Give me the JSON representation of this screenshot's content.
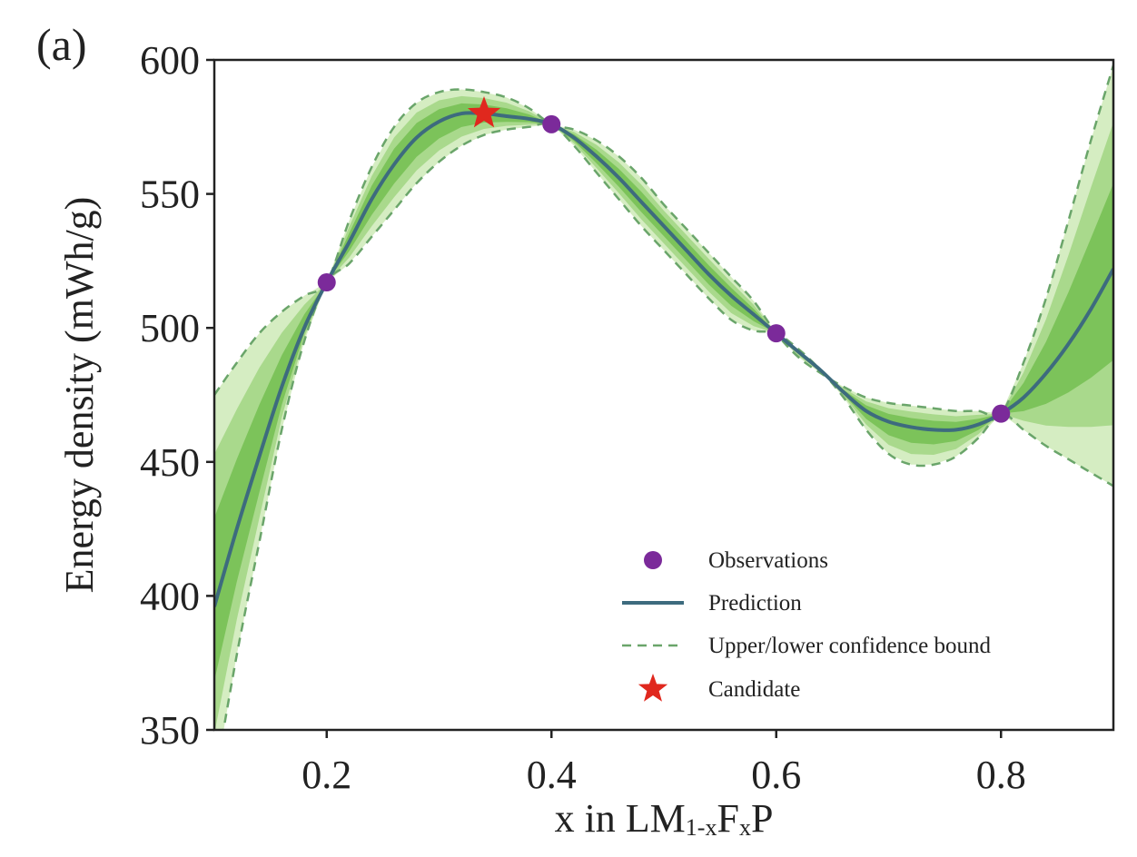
{
  "panel_label": "(a)",
  "chart_data": {
    "type": "line",
    "xlabel": {
      "main": "x in LM",
      "sub1": "1-x",
      "mid": "F",
      "sub2": "x",
      "tail": "P"
    },
    "ylabel": "Energy density (mWh/g)",
    "xlim": [
      0.1,
      0.9
    ],
    "ylim": [
      350,
      600
    ],
    "x_ticks": [
      0.2,
      0.4,
      0.6,
      0.8
    ],
    "x_tick_labels": [
      "0.2",
      "0.4",
      "0.6",
      "0.8"
    ],
    "y_ticks": [
      350,
      400,
      450,
      500,
      550,
      600
    ],
    "y_tick_labels": [
      "350",
      "400",
      "450",
      "500",
      "550",
      "600"
    ],
    "grid": false,
    "legend_position": "bottom-right",
    "observations": {
      "name": "Observations",
      "x": [
        0.2,
        0.4,
        0.6,
        0.8
      ],
      "y": [
        517,
        576,
        498,
        468
      ]
    },
    "prediction": {
      "name": "Prediction",
      "x": [
        0.1,
        0.12,
        0.14,
        0.16,
        0.18,
        0.2,
        0.22,
        0.24,
        0.26,
        0.28,
        0.3,
        0.32,
        0.34,
        0.36,
        0.38,
        0.4,
        0.42,
        0.44,
        0.46,
        0.48,
        0.5,
        0.52,
        0.54,
        0.56,
        0.58,
        0.6,
        0.62,
        0.64,
        0.66,
        0.68,
        0.7,
        0.72,
        0.74,
        0.76,
        0.78,
        0.8,
        0.82,
        0.84,
        0.86,
        0.88,
        0.9
      ],
      "y": [
        396,
        425,
        452,
        478,
        500,
        517,
        532,
        548,
        561,
        571,
        577,
        580,
        580,
        579,
        578,
        576,
        571,
        564,
        556,
        547,
        538,
        529,
        520,
        512,
        505,
        498,
        491,
        484,
        476,
        469,
        465,
        463,
        462,
        462,
        464,
        468,
        474,
        483,
        494,
        507,
        522
      ]
    },
    "upper_bound": {
      "name": "Upper/lower confidence bound",
      "x": [
        0.1,
        0.12,
        0.14,
        0.16,
        0.18,
        0.2,
        0.22,
        0.24,
        0.26,
        0.28,
        0.3,
        0.32,
        0.34,
        0.36,
        0.38,
        0.4,
        0.42,
        0.44,
        0.46,
        0.48,
        0.5,
        0.52,
        0.54,
        0.56,
        0.58,
        0.6,
        0.62,
        0.64,
        0.66,
        0.68,
        0.7,
        0.72,
        0.74,
        0.76,
        0.78,
        0.8,
        0.82,
        0.84,
        0.86,
        0.88,
        0.9
      ],
      "y": [
        475,
        487,
        498,
        506,
        512,
        517,
        540,
        560,
        575,
        584,
        588,
        589,
        588,
        586,
        582,
        576,
        574,
        570,
        564,
        556,
        546,
        537,
        528,
        519,
        510,
        498,
        489,
        483,
        478,
        474,
        472,
        471,
        470,
        469,
        469,
        468,
        487,
        511,
        540,
        570,
        598
      ]
    },
    "lower_bound": {
      "x": [
        0.1,
        0.12,
        0.14,
        0.16,
        0.18,
        0.2,
        0.22,
        0.24,
        0.26,
        0.28,
        0.3,
        0.32,
        0.34,
        0.36,
        0.38,
        0.4,
        0.42,
        0.44,
        0.46,
        0.48,
        0.5,
        0.52,
        0.54,
        0.56,
        0.58,
        0.6,
        0.62,
        0.64,
        0.66,
        0.68,
        0.7,
        0.72,
        0.74,
        0.76,
        0.78,
        0.8,
        0.82,
        0.84,
        0.86,
        0.88,
        0.9
      ],
      "y": [
        330,
        378,
        420,
        462,
        495,
        517,
        524,
        534,
        544,
        554,
        562,
        568,
        572,
        574,
        575,
        576,
        568,
        558,
        548,
        538,
        529,
        520,
        511,
        503,
        499,
        498,
        492,
        484,
        474,
        462,
        453,
        449,
        449,
        452,
        459,
        468,
        462,
        456,
        451,
        446,
        441
      ]
    },
    "candidate": {
      "name": "Candidate",
      "x": 0.34,
      "y": 580
    },
    "legend": [
      {
        "key": "observations",
        "label": "Observations"
      },
      {
        "key": "prediction",
        "label": "Prediction"
      },
      {
        "key": "bound",
        "label": "Upper/lower confidence bound"
      },
      {
        "key": "candidate",
        "label": "Candidate"
      }
    ],
    "colors": {
      "observation": "#7b2a9a",
      "prediction": "#3d6b7e",
      "bound": "#6aa56a",
      "candidate": "#e0281e",
      "band_outer": "#d5edc2",
      "band_mid": "#a9d98c",
      "band_inner": "#7cc35a",
      "axis": "#222222"
    }
  }
}
